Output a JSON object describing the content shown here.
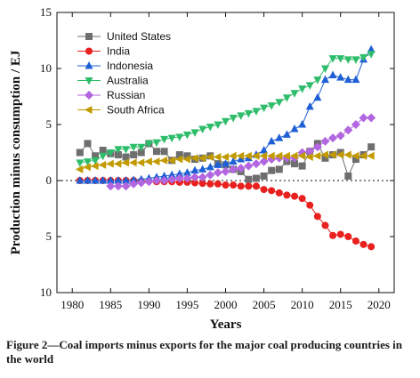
{
  "caption": "Figure 2—Coal imports minus exports for the major coal producing countries in the world",
  "chart_data": {
    "type": "line",
    "xlabel": "Years",
    "ylabel": "Production minus consumption / EJ",
    "xlim": [
      1978,
      2022
    ],
    "ylim": [
      -10,
      15
    ],
    "x_ticks": [
      1980,
      1985,
      1990,
      1995,
      2000,
      2005,
      2010,
      2015,
      2020
    ],
    "y_ticks": [
      {
        "value": 15,
        "label": "15"
      },
      {
        "value": 10,
        "label": "10"
      },
      {
        "value": 5,
        "label": "5"
      },
      {
        "value": 0,
        "label": "0"
      },
      {
        "value": -5,
        "label": "5"
      },
      {
        "value": -10,
        "label": "10"
      }
    ],
    "zero_line": true,
    "legend_position": "top-left",
    "series": [
      {
        "name": "United States",
        "color": "#6e6e6e",
        "marker": "square",
        "x": [
          1981,
          1982,
          1983,
          1984,
          1985,
          1986,
          1987,
          1988,
          1989,
          1990,
          1991,
          1992,
          1993,
          1994,
          1995,
          1996,
          1997,
          1998,
          1999,
          2000,
          2001,
          2002,
          2003,
          2004,
          2005,
          2006,
          2007,
          2008,
          2009,
          2010,
          2011,
          2012,
          2013,
          2014,
          2015,
          2016,
          2017,
          2018,
          2019
        ],
        "y": [
          2.5,
          3.3,
          2.2,
          2.7,
          2.4,
          2.3,
          2.1,
          2.3,
          2.5,
          3.3,
          2.6,
          2.6,
          1.8,
          2.3,
          2.2,
          1.9,
          2.0,
          2.2,
          1.5,
          1.4,
          1.0,
          0.8,
          0.1,
          0.2,
          0.4,
          0.9,
          1.0,
          1.7,
          1.5,
          1.3,
          2.6,
          3.3,
          2.0,
          2.3,
          2.5,
          0.4,
          1.9,
          2.3,
          3.0
        ]
      },
      {
        "name": "India",
        "color": "#e8201e",
        "marker": "circle",
        "x": [
          1981,
          1982,
          1983,
          1984,
          1985,
          1986,
          1987,
          1988,
          1989,
          1990,
          1991,
          1992,
          1993,
          1994,
          1995,
          1996,
          1997,
          1998,
          1999,
          2000,
          2001,
          2002,
          2003,
          2004,
          2005,
          2006,
          2007,
          2008,
          2009,
          2010,
          2011,
          2012,
          2013,
          2014,
          2015,
          2016,
          2017,
          2018,
          2019
        ],
        "y": [
          0.0,
          0.0,
          0.0,
          0.0,
          0.0,
          0.0,
          0.0,
          0.0,
          -0.05,
          -0.05,
          -0.1,
          -0.1,
          -0.1,
          -0.15,
          -0.15,
          -0.2,
          -0.25,
          -0.3,
          -0.3,
          -0.4,
          -0.4,
          -0.5,
          -0.5,
          -0.5,
          -0.8,
          -0.9,
          -1.1,
          -1.3,
          -1.4,
          -1.6,
          -2.2,
          -3.2,
          -4.0,
          -4.9,
          -4.8,
          -5.0,
          -5.4,
          -5.7,
          -5.9
        ]
      },
      {
        "name": "Indonesia",
        "color": "#1f5fd6",
        "marker": "triangle-up",
        "x": [
          1981,
          1982,
          1983,
          1984,
          1985,
          1986,
          1987,
          1988,
          1989,
          1990,
          1991,
          1992,
          1993,
          1994,
          1995,
          1996,
          1997,
          1998,
          1999,
          2000,
          2001,
          2002,
          2003,
          2004,
          2005,
          2006,
          2007,
          2008,
          2009,
          2010,
          2011,
          2012,
          2013,
          2014,
          2015,
          2016,
          2017,
          2018,
          2019
        ],
        "y": [
          0.0,
          0.0,
          0.0,
          0.0,
          0.0,
          0.0,
          0.0,
          0.05,
          0.1,
          0.2,
          0.3,
          0.4,
          0.5,
          0.6,
          0.7,
          0.9,
          1.0,
          1.2,
          1.4,
          1.5,
          1.7,
          1.9,
          2.0,
          2.3,
          2.7,
          3.5,
          3.8,
          4.1,
          4.6,
          5.0,
          6.6,
          7.4,
          9.0,
          9.4,
          9.2,
          9.0,
          9.0,
          10.8,
          11.7
        ]
      },
      {
        "name": "Australia",
        "color": "#2ebd6b",
        "marker": "triangle-down",
        "x": [
          1981,
          1982,
          1983,
          1984,
          1985,
          1986,
          1987,
          1988,
          1989,
          1990,
          1991,
          1992,
          1993,
          1994,
          1995,
          1996,
          1997,
          1998,
          1999,
          2000,
          2001,
          2002,
          2003,
          2004,
          2005,
          2006,
          2007,
          2008,
          2009,
          2010,
          2011,
          2012,
          2013,
          2014,
          2015,
          2016,
          2017,
          2018,
          2019
        ],
        "y": [
          1.6,
          1.7,
          1.8,
          2.2,
          2.5,
          2.8,
          2.8,
          3.0,
          3.0,
          3.3,
          3.4,
          3.7,
          3.8,
          3.9,
          4.1,
          4.3,
          4.6,
          4.8,
          5.0,
          5.3,
          5.6,
          5.8,
          6.0,
          6.2,
          6.5,
          6.7,
          7.0,
          7.4,
          7.8,
          8.2,
          8.5,
          9.0,
          10.0,
          10.9,
          10.9,
          10.8,
          10.8,
          11.0,
          11.3
        ]
      },
      {
        "name": "Russian",
        "color": "#b266e0",
        "marker": "diamond",
        "x": [
          1985,
          1986,
          1987,
          1988,
          1989,
          1990,
          1991,
          1992,
          1993,
          1994,
          1995,
          1996,
          1997,
          1998,
          1999,
          2000,
          2001,
          2002,
          2003,
          2004,
          2005,
          2006,
          2007,
          2008,
          2009,
          2010,
          2011,
          2012,
          2013,
          2014,
          2015,
          2016,
          2017,
          2018,
          2019
        ],
        "y": [
          -0.5,
          -0.5,
          -0.5,
          -0.3,
          -0.2,
          -0.1,
          0.0,
          0.0,
          0.1,
          0.2,
          0.2,
          0.3,
          0.3,
          0.5,
          0.7,
          0.8,
          1.0,
          1.1,
          1.3,
          1.5,
          1.7,
          1.9,
          2.0,
          2.0,
          2.0,
          2.5,
          2.6,
          3.0,
          3.5,
          3.8,
          4.0,
          4.5,
          5.0,
          5.6,
          5.6
        ]
      },
      {
        "name": "South Africa",
        "color": "#c29a00",
        "marker": "triangle-left",
        "x": [
          1981,
          1982,
          1983,
          1984,
          1985,
          1986,
          1987,
          1988,
          1989,
          1990,
          1991,
          1992,
          1993,
          1994,
          1995,
          1996,
          1997,
          1998,
          1999,
          2000,
          2001,
          2002,
          2003,
          2004,
          2005,
          2006,
          2007,
          2008,
          2009,
          2010,
          2011,
          2012,
          2013,
          2014,
          2015,
          2016,
          2017,
          2018,
          2019
        ],
        "y": [
          1.0,
          1.2,
          1.3,
          1.4,
          1.5,
          1.5,
          1.6,
          1.6,
          1.6,
          1.7,
          1.7,
          1.8,
          1.8,
          1.9,
          1.9,
          2.0,
          2.0,
          2.1,
          2.1,
          2.1,
          2.2,
          2.2,
          2.2,
          2.2,
          2.2,
          2.2,
          2.2,
          2.2,
          2.2,
          2.2,
          2.1,
          2.2,
          2.3,
          2.3,
          2.3,
          2.3,
          2.2,
          2.2,
          2.2
        ]
      }
    ]
  }
}
